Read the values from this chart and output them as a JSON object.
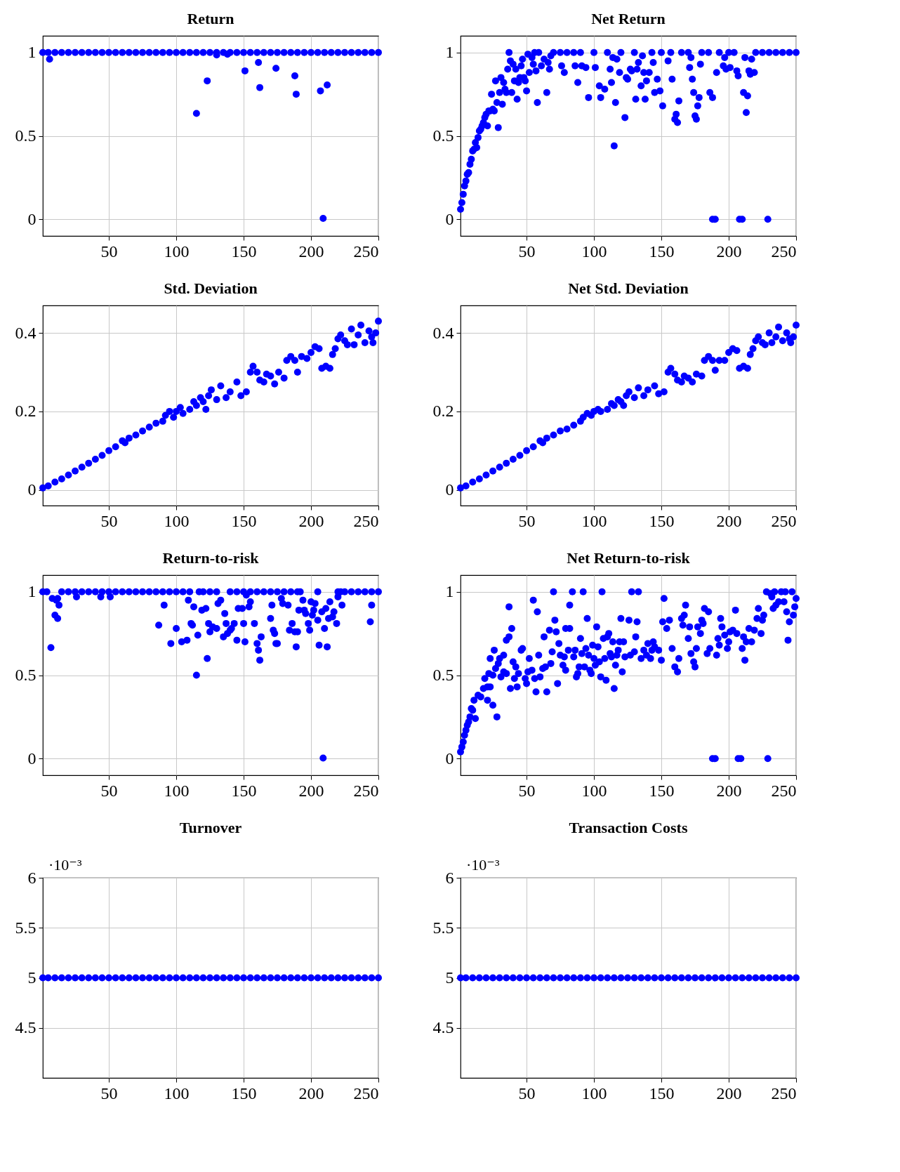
{
  "chart_data": [
    {
      "type": "scatter",
      "title": "Return",
      "marker": "circle",
      "grid": true,
      "xlim": [
        1,
        250
      ],
      "xticks": [
        50,
        100,
        150,
        200,
        250
      ],
      "ylim": [
        -0.1,
        1.1
      ],
      "yticks": [
        0,
        0.5,
        1
      ],
      "series": [
        {
          "color": "#0000ff",
          "x": [
            1,
            5,
            10,
            15,
            20,
            25,
            30,
            35,
            40,
            45,
            50,
            55,
            60,
            65,
            70,
            75,
            80,
            85,
            90,
            95,
            100,
            105,
            110,
            115,
            120,
            125,
            130,
            135,
            140,
            145,
            150,
            155,
            160,
            165,
            170,
            175,
            180,
            185,
            190,
            195,
            200,
            205,
            210,
            215,
            220,
            225,
            230,
            235,
            240,
            245,
            250,
            6,
            115,
            123,
            130,
            138,
            151,
            161,
            162,
            174,
            188,
            189,
            207,
            209,
            212
          ],
          "values": [
            1,
            1,
            1,
            1,
            1,
            1,
            1,
            1,
            1,
            1,
            1,
            1,
            1,
            1,
            1,
            1,
            1,
            1,
            1,
            1,
            1,
            1,
            1,
            1,
            1,
            1,
            1,
            1,
            1,
            1,
            1,
            1,
            1,
            1,
            1,
            1,
            1,
            1,
            1,
            1,
            1,
            1,
            1,
            1,
            1,
            1,
            1,
            1,
            1,
            1,
            1,
            0.96,
            0.635,
            0.83,
            0.985,
            0.99,
            0.89,
            0.94,
            0.79,
            0.905,
            0.86,
            0.75,
            0.77,
            0.005,
            0.805
          ]
        }
      ]
    },
    {
      "type": "scatter",
      "title": "Net Return",
      "marker": "circle",
      "grid": true,
      "xlim": [
        1,
        250
      ],
      "xticks": [
        50,
        100,
        150,
        200,
        250
      ],
      "ylim": [
        -0.1,
        1.1
      ],
      "yticks": [
        0,
        0.5,
        1
      ],
      "series": [
        {
          "color": "#0000ff",
          "x": [
            1,
            2,
            3,
            4,
            5,
            6,
            7,
            8,
            9,
            10,
            11,
            12,
            13,
            14,
            15,
            16,
            17,
            18,
            19,
            20,
            21,
            22,
            23,
            24,
            25,
            26,
            27,
            28,
            29,
            30,
            31,
            32,
            33,
            34,
            35,
            36,
            37,
            38,
            39,
            40,
            41,
            42,
            43,
            44,
            45,
            46,
            47,
            48,
            49,
            50,
            51,
            52,
            54,
            55,
            56,
            57,
            58,
            59,
            61,
            63,
            65,
            66,
            67,
            68,
            70,
            75,
            76,
            78,
            80,
            85,
            86,
            88,
            90,
            91,
            94,
            96,
            100,
            101,
            104,
            105,
            108,
            110,
            112,
            113,
            114,
            115,
            116,
            117,
            119,
            120,
            123,
            124,
            125,
            127,
            128,
            130,
            131,
            132,
            133,
            135,
            136,
            137,
            138,
            139,
            141,
            143,
            144,
            145,
            147,
            149,
            150,
            151,
            155,
            157,
            158,
            160,
            161,
            162,
            163,
            165,
            170,
            171,
            172,
            173,
            174,
            175,
            176,
            177,
            178,
            179,
            180,
            185,
            186,
            188,
            188,
            190,
            191,
            193,
            196,
            197,
            198,
            200,
            201,
            204,
            206,
            207,
            208,
            210,
            211,
            212,
            213,
            214,
            215,
            216,
            217,
            219,
            220,
            225,
            229,
            230,
            235,
            240,
            245,
            250
          ],
          "values": [
            0.06,
            0.1,
            0.15,
            0.2,
            0.23,
            0.27,
            0.28,
            0.33,
            0.36,
            0.41,
            0.42,
            0.46,
            0.43,
            0.49,
            0.53,
            0.54,
            0.56,
            0.58,
            0.61,
            0.63,
            0.56,
            0.65,
            0.65,
            0.75,
            0.66,
            0.65,
            0.83,
            0.7,
            0.55,
            0.76,
            0.85,
            0.69,
            0.82,
            0.78,
            0.76,
            0.9,
            1,
            0.95,
            0.76,
            0.93,
            0.83,
            0.9,
            0.72,
            0.82,
            0.85,
            0.92,
            0.96,
            0.85,
            0.83,
            0.77,
            0.99,
            0.88,
            0.97,
            0.93,
            1,
            0.89,
            0.7,
            1,
            0.92,
            0.96,
            0.76,
            0.94,
            0.9,
            0.98,
            1,
            1,
            0.92,
            0.88,
            1,
            1,
            0.92,
            0.82,
            1,
            0.92,
            0.91,
            0.73,
            1,
            0.91,
            0.8,
            0.73,
            0.78,
            1,
            0.9,
            0.82,
            0.97,
            0.44,
            0.7,
            0.96,
            0.88,
            1,
            0.61,
            0.85,
            0.84,
            0.9,
            0.89,
            1,
            0.72,
            0.9,
            0.94,
            0.8,
            0.98,
            0.88,
            0.72,
            0.83,
            0.88,
            1,
            0.94,
            0.76,
            0.84,
            0.77,
            1,
            0.68,
            0.95,
            1,
            0.84,
            0.6,
            0.63,
            0.58,
            0.71,
            1,
            1,
            0.91,
            0.97,
            0.84,
            0.76,
            0.62,
            0.6,
            0.68,
            0.73,
            0.93,
            1,
            1,
            0.76,
            0.73,
            0,
            0,
            0.88,
            1,
            0.92,
            0.97,
            0.9,
            1,
            0.91,
            1,
            0.89,
            0.86,
            0,
            0,
            0.76,
            0.97,
            0.64,
            0.74,
            0.89,
            0.87,
            0.96,
            0.88,
            1,
            1,
            0,
            1,
            1,
            1,
            1,
            1
          ]
        }
      ]
    },
    {
      "type": "scatter",
      "title": "Std. Deviation",
      "marker": "circle",
      "grid": true,
      "xlim": [
        1,
        250
      ],
      "xticks": [
        50,
        100,
        150,
        200,
        250
      ],
      "ylim": [
        -0.04,
        0.47
      ],
      "yticks": [
        0,
        0.2,
        0.4
      ],
      "series": [
        {
          "color": "#0000ff",
          "x": [
            1,
            10,
            20,
            30,
            40,
            50,
            55,
            60,
            62,
            70,
            75,
            80,
            85,
            90,
            92,
            95,
            98,
            100,
            103,
            105,
            110,
            113,
            115,
            118,
            120,
            122,
            124,
            126,
            130,
            133,
            137,
            140,
            145,
            148,
            152,
            155,
            157,
            160,
            162,
            165,
            167,
            170,
            173,
            176,
            180,
            182,
            185,
            188,
            190,
            193,
            197,
            200,
            203,
            206,
            208,
            211,
            214,
            216,
            218,
            220,
            222,
            225,
            227,
            230,
            232,
            235,
            237,
            240,
            243,
            245,
            246,
            248,
            250,
            5,
            15,
            25,
            35,
            45,
            65
          ],
          "values": [
            0.005,
            0.02,
            0.038,
            0.058,
            0.078,
            0.1,
            0.11,
            0.125,
            0.12,
            0.14,
            0.15,
            0.16,
            0.17,
            0.175,
            0.19,
            0.2,
            0.185,
            0.2,
            0.21,
            0.195,
            0.205,
            0.225,
            0.215,
            0.235,
            0.225,
            0.205,
            0.24,
            0.255,
            0.23,
            0.265,
            0.235,
            0.25,
            0.275,
            0.24,
            0.25,
            0.3,
            0.315,
            0.3,
            0.28,
            0.275,
            0.295,
            0.29,
            0.27,
            0.3,
            0.285,
            0.33,
            0.34,
            0.33,
            0.3,
            0.34,
            0.335,
            0.35,
            0.365,
            0.36,
            0.31,
            0.315,
            0.31,
            0.345,
            0.36,
            0.385,
            0.395,
            0.38,
            0.37,
            0.41,
            0.37,
            0.395,
            0.42,
            0.375,
            0.405,
            0.39,
            0.375,
            0.4,
            0.43,
            0.01,
            0.028,
            0.048,
            0.068,
            0.088,
            0.132
          ]
        }
      ]
    },
    {
      "type": "scatter",
      "title": "Net Std. Deviation",
      "marker": "circle",
      "grid": true,
      "xlim": [
        1,
        250
      ],
      "xticks": [
        50,
        100,
        150,
        200,
        250
      ],
      "ylim": [
        -0.04,
        0.47
      ],
      "yticks": [
        0,
        0.2,
        0.4
      ],
      "series": [
        {
          "color": "#0000ff",
          "x": [
            1,
            10,
            20,
            30,
            40,
            50,
            55,
            60,
            62,
            70,
            75,
            80,
            85,
            90,
            92,
            95,
            98,
            100,
            103,
            105,
            110,
            113,
            115,
            118,
            120,
            122,
            124,
            126,
            130,
            133,
            137,
            140,
            145,
            148,
            152,
            155,
            157,
            160,
            162,
            165,
            167,
            170,
            173,
            176,
            180,
            182,
            185,
            188,
            190,
            193,
            197,
            200,
            203,
            206,
            208,
            211,
            214,
            216,
            218,
            220,
            222,
            225,
            227,
            230,
            232,
            235,
            237,
            240,
            243,
            245,
            246,
            248,
            250,
            5,
            15,
            25,
            35,
            45,
            65
          ],
          "values": [
            0.005,
            0.02,
            0.038,
            0.058,
            0.078,
            0.1,
            0.11,
            0.125,
            0.12,
            0.14,
            0.15,
            0.155,
            0.165,
            0.175,
            0.185,
            0.195,
            0.19,
            0.2,
            0.205,
            0.2,
            0.205,
            0.22,
            0.215,
            0.23,
            0.225,
            0.215,
            0.24,
            0.25,
            0.235,
            0.26,
            0.24,
            0.255,
            0.265,
            0.245,
            0.25,
            0.3,
            0.31,
            0.295,
            0.28,
            0.275,
            0.29,
            0.285,
            0.275,
            0.295,
            0.29,
            0.33,
            0.34,
            0.33,
            0.305,
            0.33,
            0.33,
            0.35,
            0.36,
            0.355,
            0.31,
            0.315,
            0.31,
            0.345,
            0.36,
            0.38,
            0.39,
            0.375,
            0.37,
            0.4,
            0.375,
            0.39,
            0.415,
            0.38,
            0.4,
            0.385,
            0.375,
            0.39,
            0.42,
            0.01,
            0.028,
            0.048,
            0.068,
            0.088,
            0.132
          ]
        }
      ]
    },
    {
      "type": "scatter",
      "title": "Return-to-risk",
      "marker": "circle",
      "grid": true,
      "xlim": [
        1,
        250
      ],
      "xticks": [
        50,
        100,
        150,
        200,
        250
      ],
      "ylim": [
        -0.1,
        1.1
      ],
      "yticks": [
        0,
        0.5,
        1
      ],
      "series": [
        {
          "color": "#0000ff",
          "x": [
            1,
            4,
            15,
            20,
            25,
            30,
            35,
            40,
            45,
            50,
            55,
            60,
            65,
            70,
            75,
            80,
            85,
            90,
            95,
            100,
            105,
            110,
            117,
            120,
            125,
            130,
            140,
            145,
            150,
            155,
            160,
            165,
            170,
            175,
            180,
            185,
            190,
            192,
            205,
            220,
            222,
            225,
            230,
            235,
            240,
            245,
            250,
            7,
            8,
            10,
            11,
            12,
            12,
            13,
            26,
            44,
            51,
            87,
            91,
            96,
            100,
            104,
            108,
            109,
            111,
            112,
            113,
            115,
            116,
            119,
            122,
            123,
            124,
            125,
            127,
            130,
            131,
            133,
            135,
            136,
            137,
            138,
            140,
            141,
            143,
            145,
            146,
            149,
            150,
            151,
            152,
            154,
            155,
            158,
            160,
            161,
            162,
            163,
            170,
            171,
            172,
            173,
            174,
            175,
            178,
            179,
            183,
            184,
            186,
            188,
            189,
            190,
            191,
            194,
            195,
            196,
            198,
            199,
            200,
            201,
            202,
            203,
            205,
            206,
            208,
            209,
            210,
            211,
            212,
            213,
            214,
            216,
            217,
            219,
            220,
            223,
            244,
            245
          ],
          "values": [
            1,
            1,
            1,
            1,
            1,
            1,
            1,
            1,
            1,
            1,
            1,
            1,
            1,
            1,
            1,
            1,
            1,
            1,
            1,
            1,
            1,
            1,
            1,
            1,
            1,
            1,
            1,
            1,
            1,
            1,
            1,
            1,
            1,
            1,
            1,
            1,
            1,
            1,
            1,
            1,
            1,
            1,
            1,
            1,
            1,
            1,
            1,
            0.665,
            0.96,
            0.86,
            0.95,
            0.84,
            0.96,
            0.92,
            0.97,
            0.97,
            0.97,
            0.8,
            0.92,
            0.69,
            0.78,
            0.7,
            0.71,
            0.95,
            0.81,
            0.8,
            0.91,
            0.5,
            0.74,
            0.89,
            0.9,
            0.6,
            0.81,
            0.76,
            0.79,
            0.78,
            0.93,
            0.95,
            0.73,
            0.87,
            0.81,
            0.75,
            0.77,
            0.78,
            0.81,
            0.71,
            0.9,
            0.9,
            0.81,
            0.7,
            0.98,
            0.91,
            0.94,
            0.81,
            0.69,
            0.65,
            0.59,
            0.73,
            0.84,
            0.92,
            0.77,
            0.75,
            0.69,
            0.69,
            0.96,
            0.93,
            0.92,
            0.77,
            0.81,
            0.76,
            0.67,
            0.76,
            0.89,
            0.95,
            0.89,
            0.87,
            0.81,
            0.77,
            0.94,
            0.86,
            0.89,
            0.93,
            0.83,
            0.68,
            0.88,
            0.003,
            0.78,
            0.9,
            0.67,
            0.84,
            0.94,
            0.85,
            0.88,
            0.81,
            0.97,
            0.92,
            0.82,
            0.92
          ]
        }
      ]
    },
    {
      "type": "scatter",
      "title": "Net Return-to-risk",
      "marker": "circle",
      "grid": true,
      "xlim": [
        1,
        250
      ],
      "xticks": [
        50,
        100,
        150,
        200,
        250
      ],
      "ylim": [
        -0.1,
        1.1
      ],
      "yticks": [
        0,
        0.5,
        1
      ],
      "series": [
        {
          "color": "#0000ff",
          "x": [
            1,
            2,
            3,
            4,
            5,
            6,
            7,
            8,
            9,
            10,
            11,
            12,
            14,
            16,
            18,
            19,
            21,
            21,
            22,
            23,
            23,
            25,
            25,
            26,
            27,
            28,
            29,
            30,
            31,
            33,
            33,
            35,
            35,
            37,
            37,
            38,
            39,
            40,
            41,
            42,
            43,
            44,
            46,
            47,
            49,
            50,
            51,
            52,
            54,
            55,
            56,
            57,
            58,
            59,
            60,
            62,
            63,
            64,
            65,
            67,
            68,
            69,
            70,
            71,
            72,
            73,
            74,
            75,
            77,
            78,
            79,
            79,
            81,
            82,
            82,
            84,
            85,
            86,
            87,
            88,
            89,
            90,
            91,
            92,
            93,
            94,
            95,
            96,
            97,
            98,
            99,
            100,
            101,
            102,
            103,
            104,
            105,
            106,
            107,
            108,
            109,
            110,
            111,
            112,
            113,
            114,
            115,
            116,
            117,
            118,
            119,
            120,
            121,
            122,
            123,
            126,
            127,
            128,
            130,
            131,
            132,
            133,
            135,
            137,
            139,
            140,
            142,
            143,
            144,
            145,
            148,
            150,
            151,
            152,
            154,
            156,
            158,
            160,
            162,
            163,
            165,
            166,
            167,
            168,
            170,
            171,
            172,
            174,
            175,
            176,
            177,
            179,
            180,
            181,
            182,
            184,
            185,
            186,
            188,
            190,
            191,
            192,
            193,
            194,
            195,
            197,
            199,
            200,
            201,
            203,
            205,
            206,
            207,
            209,
            210,
            211,
            212,
            213,
            215,
            217,
            219,
            221,
            222,
            224,
            225,
            226,
            228,
            229,
            231,
            232,
            233,
            234,
            235,
            237,
            239,
            241,
            242,
            243,
            244,
            245,
            247,
            248,
            249,
            250
          ],
          "values": [
            0.04,
            0.07,
            0.1,
            0.14,
            0.17,
            0.2,
            0.22,
            0.25,
            0.3,
            0.29,
            0.35,
            0.24,
            0.38,
            0.37,
            0.42,
            0.48,
            0.43,
            0.35,
            0.51,
            0.43,
            0.6,
            0.5,
            0.32,
            0.65,
            0.54,
            0.25,
            0.57,
            0.6,
            0.49,
            0.62,
            0.52,
            0.51,
            0.71,
            0.73,
            0.91,
            0.42,
            0.78,
            0.58,
            0.48,
            0.55,
            0.43,
            0.51,
            0.65,
            0.66,
            0.48,
            0.45,
            0.52,
            0.6,
            0.53,
            0.95,
            0.48,
            0.4,
            0.88,
            0.62,
            0.49,
            0.54,
            0.73,
            0.55,
            0.4,
            0.77,
            0.57,
            0.64,
            1,
            0.83,
            0.76,
            0.45,
            0.69,
            0.62,
            0.56,
            0.61,
            0.53,
            0.78,
            0.65,
            0.92,
            0.78,
            1,
            0.61,
            0.65,
            0.49,
            0.51,
            0.55,
            0.72,
            0.63,
            1,
            0.55,
            0.66,
            0.84,
            0.62,
            0.53,
            0.51,
            0.68,
            0.6,
            0.56,
            0.79,
            0.67,
            0.58,
            0.49,
            1,
            0.72,
            0.6,
            0.47,
            0.73,
            0.75,
            0.63,
            0.61,
            0.7,
            0.42,
            0.56,
            0.62,
            0.65,
            0.7,
            0.84,
            0.52,
            0.7,
            0.61,
            0.83,
            0.62,
            1,
            0.64,
            0.73,
            0.82,
            1,
            0.6,
            0.65,
            0.62,
            0.69,
            0.6,
            0.65,
            0.7,
            0.67,
            0.65,
            0.59,
            0.82,
            0.96,
            0.78,
            0.83,
            0.66,
            0.55,
            0.52,
            0.6,
            0.84,
            0.8,
            0.86,
            0.92,
            0.72,
            0.79,
            0.63,
            0.58,
            0.55,
            0.66,
            0.79,
            0.75,
            0.83,
            0.81,
            0.9,
            0.63,
            0.88,
            0.66,
            0,
            0,
            0.62,
            0.72,
            0.68,
            0.84,
            0.79,
            0.74,
            0.66,
            0.7,
            0.76,
            0.77,
            0.89,
            0.75,
            0,
            0,
            0.66,
            0.73,
            0.59,
            0.7,
            0.78,
            0.7,
            0.77,
            0.84,
            0.9,
            0.75,
            0.83,
            0.86,
            1,
            0,
            0.99,
            0.97,
            0.9,
            1,
            0.92,
            0.94,
            1,
            0.94,
            1,
            0.88,
            0.71,
            0.82,
            1,
            0.86,
            0.91,
            0.96
          ]
        }
      ]
    },
    {
      "type": "scatter",
      "title": "Turnover",
      "marker": "circle",
      "grid": true,
      "annotations": [
        "·10⁻³"
      ],
      "xlim": [
        1,
        250
      ],
      "xticks": [
        50,
        100,
        150,
        200,
        250
      ],
      "ylim": [
        4,
        6
      ],
      "yticks": [
        4.5,
        5,
        5.5,
        6
      ],
      "series": [
        {
          "color": "#0000ff",
          "x": [
            1,
            5,
            10,
            15,
            20,
            25,
            30,
            35,
            40,
            45,
            50,
            55,
            60,
            65,
            70,
            75,
            80,
            85,
            90,
            95,
            100,
            105,
            110,
            115,
            120,
            125,
            130,
            135,
            140,
            145,
            150,
            155,
            160,
            165,
            170,
            175,
            180,
            185,
            190,
            195,
            200,
            205,
            210,
            215,
            220,
            225,
            230,
            235,
            240,
            245,
            250
          ],
          "values": [
            5,
            5,
            5,
            5,
            5,
            5,
            5,
            5,
            5,
            5,
            5,
            5,
            5,
            5,
            5,
            5,
            5,
            5,
            5,
            5,
            5,
            5,
            5,
            5,
            5,
            5,
            5,
            5,
            5,
            5,
            5,
            5,
            5,
            5,
            5,
            5,
            5,
            5,
            5,
            5,
            5,
            5,
            5,
            5,
            5,
            5,
            5,
            5,
            5,
            5,
            5
          ]
        }
      ]
    },
    {
      "type": "scatter",
      "title": "Transaction Costs",
      "marker": "circle",
      "grid": true,
      "annotations": [
        "·10⁻³"
      ],
      "xlim": [
        1,
        250
      ],
      "xticks": [
        50,
        100,
        150,
        200,
        250
      ],
      "ylim": [
        4,
        6
      ],
      "yticks": [
        4.5,
        5,
        5.5,
        6
      ],
      "series": [
        {
          "color": "#0000ff",
          "x": [
            1,
            5,
            10,
            15,
            20,
            25,
            30,
            35,
            40,
            45,
            50,
            55,
            60,
            65,
            70,
            75,
            80,
            85,
            90,
            95,
            100,
            105,
            110,
            115,
            120,
            125,
            130,
            135,
            140,
            145,
            150,
            155,
            160,
            165,
            170,
            175,
            180,
            185,
            190,
            195,
            200,
            205,
            210,
            215,
            220,
            225,
            230,
            235,
            240,
            245,
            250
          ],
          "values": [
            5,
            5,
            5,
            5,
            5,
            5,
            5,
            5,
            5,
            5,
            5,
            5,
            5,
            5,
            5,
            5,
            5,
            5,
            5,
            5,
            5,
            5,
            5,
            5,
            5,
            5,
            5,
            5,
            5,
            5,
            5,
            5,
            5,
            5,
            5,
            5,
            5,
            5,
            5,
            5,
            5,
            5,
            5,
            5,
            5,
            5,
            5,
            5,
            5,
            5,
            5
          ]
        }
      ]
    }
  ]
}
